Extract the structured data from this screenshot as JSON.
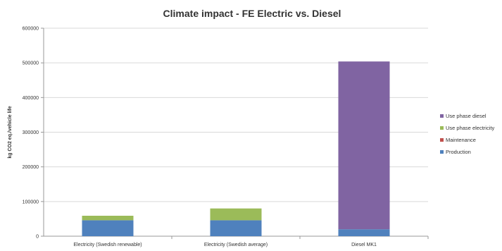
{
  "chart_data": {
    "type": "bar",
    "stacked": true,
    "title": "Climate impact - FE Electric vs. Diesel",
    "ylabel": "kg CO2 eq./vehicle life",
    "xlabel": "",
    "ylim": [
      0,
      600000
    ],
    "yticks": [
      "0",
      "100000",
      "200000",
      "300000",
      "400000",
      "500000",
      "600000"
    ],
    "grid": true,
    "legend_position": "right",
    "categories": [
      "Electricity (Swedish renewable)",
      "Electricity (Swedish average)",
      "Diesel MK1"
    ],
    "series": [
      {
        "name": "Production",
        "color": "#4f81bd",
        "values": [
          46000,
          46000,
          20000
        ]
      },
      {
        "name": "Maintenance",
        "color": "#c0504d",
        "values": [
          0,
          0,
          0
        ]
      },
      {
        "name": "Use phase electricity",
        "color": "#9bbb59",
        "values": [
          13000,
          34000,
          0
        ]
      },
      {
        "name": "Use phase diesel",
        "color": "#8064a2",
        "values": [
          0,
          0,
          484000
        ]
      }
    ]
  }
}
